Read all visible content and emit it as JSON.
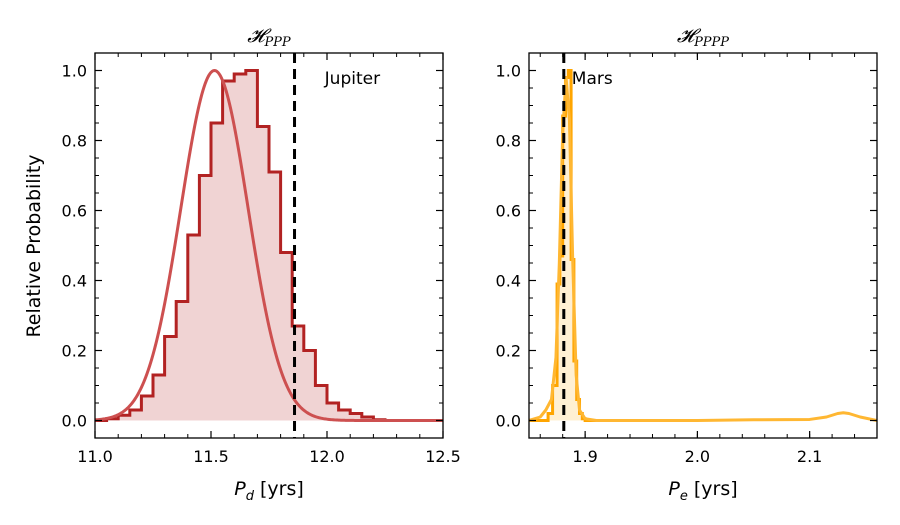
{
  "figure": {
    "ylabel": "Relative Probability"
  },
  "chart_data": [
    {
      "type": "line",
      "title": "𝓗PPP",
      "title_main": "𝓗",
      "title_sub": "PPP",
      "xlabel_main": "P",
      "xlabel_sub": "d",
      "xlabel_rest": " [yrs]",
      "xlim": [
        11.0,
        12.5
      ],
      "ylim": [
        -0.05,
        1.05
      ],
      "xticks": [
        11.0,
        11.5,
        12.0,
        12.5
      ],
      "xtick_labels": [
        "11.0",
        "11.5",
        "12.0",
        "12.5"
      ],
      "yticks": [
        0.0,
        0.2,
        0.4,
        0.6,
        0.8,
        1.0
      ],
      "ytick_labels": [
        "0.0",
        "0.2",
        "0.4",
        "0.6",
        "0.8",
        "1.0"
      ],
      "reference_line": {
        "x": 11.86,
        "label": "Jupiter",
        "style": "dashed"
      },
      "series": [
        {
          "name": "histogram",
          "kind": "step",
          "color": "#b22222",
          "bin_edges": [
            11.0,
            11.05,
            11.1,
            11.15,
            11.2,
            11.25,
            11.3,
            11.35,
            11.4,
            11.45,
            11.5,
            11.55,
            11.6,
            11.65,
            11.7,
            11.75,
            11.8,
            11.85,
            11.9,
            11.95,
            12.0,
            12.05,
            12.1,
            12.15,
            12.2,
            12.25,
            12.5
          ],
          "values": [
            0.0,
            0.005,
            0.015,
            0.03,
            0.07,
            0.13,
            0.24,
            0.34,
            0.53,
            0.7,
            0.85,
            0.97,
            0.99,
            1.0,
            0.84,
            0.71,
            0.48,
            0.27,
            0.2,
            0.1,
            0.05,
            0.03,
            0.02,
            0.01,
            0.002,
            0.0
          ]
        },
        {
          "name": "gaussian fit",
          "kind": "gaussian",
          "color": "#cd5050",
          "mu": 11.515,
          "sigma": 0.145,
          "amplitude": 1.0
        }
      ]
    },
    {
      "type": "line",
      "title": "𝓗PPPP",
      "title_main": "𝓗",
      "title_sub": "PPPP",
      "xlabel_main": "P",
      "xlabel_sub": "e",
      "xlabel_rest": " [yrs]",
      "xlim": [
        1.85,
        2.16
      ],
      "ylim": [
        -0.05,
        1.05
      ],
      "xticks": [
        1.9,
        2.0,
        2.1
      ],
      "xtick_labels": [
        "1.9",
        "2.0",
        "2.1"
      ],
      "yticks": [
        0.0,
        0.2,
        0.4,
        0.6,
        0.8,
        1.0
      ],
      "ytick_labels": [
        "0.0",
        "0.2",
        "0.4",
        "0.6",
        "0.8",
        "1.0"
      ],
      "reference_line": {
        "x": 1.881,
        "label": "Mars",
        "style": "dashed"
      },
      "series": [
        {
          "name": "histogram",
          "kind": "step",
          "color": "#ffa500",
          "bin_edges": [
            1.85,
            1.867,
            1.871,
            1.875,
            1.8775,
            1.88,
            1.8825,
            1.885,
            1.8875,
            1.89,
            1.8925,
            1.895,
            1.8975,
            1.9,
            1.95
          ],
          "values": [
            0.0,
            0.02,
            0.1,
            0.39,
            0.47,
            0.87,
            0.98,
            1.0,
            0.46,
            0.17,
            0.06,
            0.02,
            0.005,
            0.0
          ]
        },
        {
          "name": "kde",
          "kind": "curve",
          "color": "#ffb732",
          "x": [
            1.85,
            1.86,
            1.865,
            1.87,
            1.874,
            1.877,
            1.88,
            1.883,
            1.886,
            1.889,
            1.892,
            1.895,
            1.9,
            1.91,
            1.95,
            2.0,
            2.05,
            2.1,
            2.115,
            2.125,
            2.13,
            2.135,
            2.145,
            2.16
          ],
          "y": [
            0.0,
            0.01,
            0.03,
            0.06,
            0.18,
            0.45,
            0.82,
            0.98,
            0.86,
            0.45,
            0.13,
            0.03,
            0.005,
            0.0,
            0.0,
            0.0,
            0.002,
            0.003,
            0.01,
            0.02,
            0.022,
            0.02,
            0.01,
            0.0
          ]
        }
      ]
    }
  ]
}
